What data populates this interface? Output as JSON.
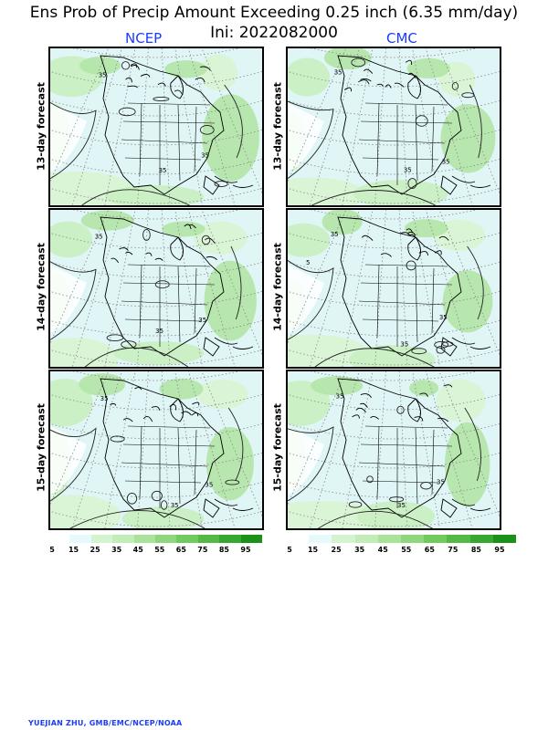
{
  "title_line1": "Ens Prob of Precip Amount Exceeding 0.25 inch (6.35 mm/day)",
  "title_line2": "Ini: 2022082000",
  "columns": [
    "NCEP",
    "CMC"
  ],
  "rows": [
    "13-day forecast",
    "14-day forecast",
    "15-day forecast"
  ],
  "contour_label": "35",
  "contour_label_alt": "5",
  "colorbar": {
    "labels": [
      "5",
      "15",
      "25",
      "35",
      "45",
      "55",
      "65",
      "75",
      "85",
      "95"
    ],
    "colors": [
      "#ffffff",
      "#e6f9fb",
      "#d4f4d1",
      "#c2ecb8",
      "#a9e39a",
      "#8fd77c",
      "#72c95d",
      "#55ba45",
      "#36a82f",
      "#1a9119"
    ]
  },
  "credit": "YUEJIAN ZHU, GMB/EMC/NCEP/NOAA"
}
